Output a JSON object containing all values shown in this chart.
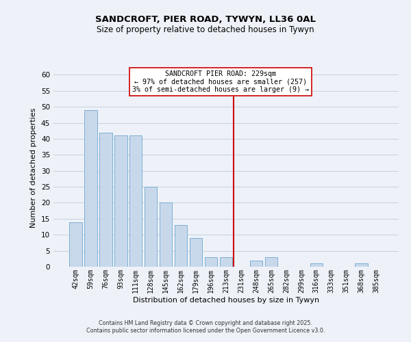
{
  "title": "SANDCROFT, PIER ROAD, TYWYN, LL36 0AL",
  "subtitle": "Size of property relative to detached houses in Tywyn",
  "xlabel": "Distribution of detached houses by size in Tywyn",
  "ylabel": "Number of detached properties",
  "bar_labels": [
    "42sqm",
    "59sqm",
    "76sqm",
    "93sqm",
    "111sqm",
    "128sqm",
    "145sqm",
    "162sqm",
    "179sqm",
    "196sqm",
    "213sqm",
    "231sqm",
    "248sqm",
    "265sqm",
    "282sqm",
    "299sqm",
    "316sqm",
    "333sqm",
    "351sqm",
    "368sqm",
    "385sqm"
  ],
  "bar_heights": [
    14,
    49,
    42,
    41,
    41,
    25,
    20,
    13,
    9,
    3,
    3,
    0,
    2,
    3,
    0,
    0,
    1,
    0,
    0,
    1,
    0
  ],
  "bar_color": "#c8d8eb",
  "bar_edge_color": "#7bafd4",
  "vline_x_index": 11,
  "vline_color": "#cc0000",
  "ylim": [
    0,
    62
  ],
  "yticks": [
    0,
    5,
    10,
    15,
    20,
    25,
    30,
    35,
    40,
    45,
    50,
    55,
    60
  ],
  "legend_title": "SANDCROFT PIER ROAD: 229sqm",
  "legend_line1": "← 97% of detached houses are smaller (257)",
  "legend_line2": "3% of semi-detached houses are larger (9) →",
  "legend_box_color": "#ffffff",
  "legend_box_edge": "#cc0000",
  "grid_color": "#c8d4e4",
  "background_color": "#eef2f8",
  "footer1": "Contains HM Land Registry data © Crown copyright and database right 2025.",
  "footer2": "Contains public sector information licensed under the Open Government Licence v3.0."
}
